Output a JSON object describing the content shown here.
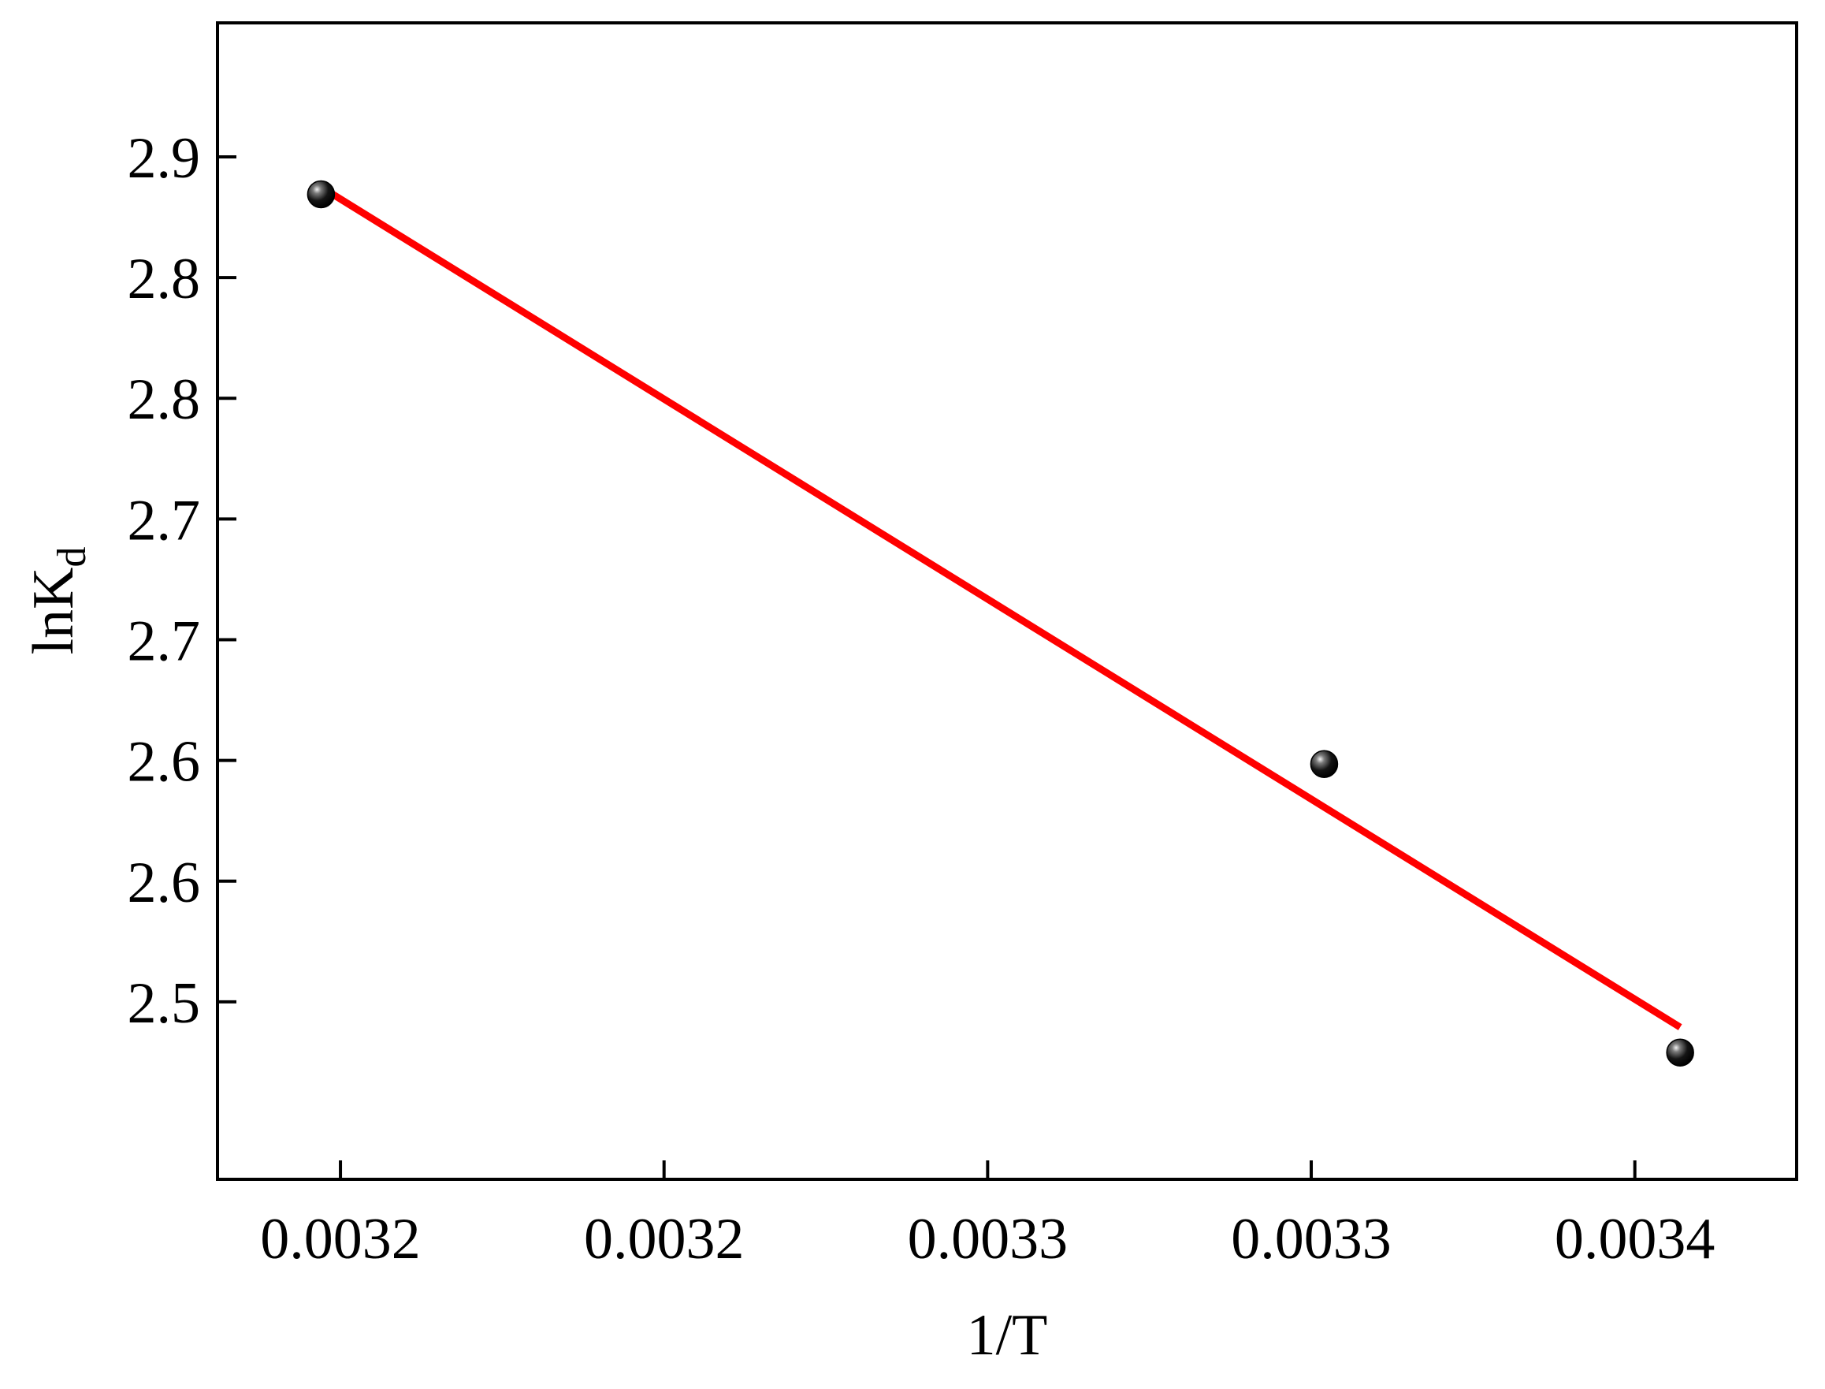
{
  "chart_data": {
    "type": "scatter",
    "xlabel": "1/T",
    "ylabel_main": "lnK",
    "ylabel_sub": "d",
    "xlim": [
      0.003166,
      0.00341
    ],
    "ylim": [
      2.4265,
      2.9055
    ],
    "x_ticks": [
      {
        "value": 0.003185,
        "label": "0.0032"
      },
      {
        "value": 0.003235,
        "label": "0.0032"
      },
      {
        "value": 0.003285,
        "label": "0.0033"
      },
      {
        "value": 0.003335,
        "label": "0.0033"
      },
      {
        "value": 0.003385,
        "label": "0.0034"
      }
    ],
    "y_ticks": [
      {
        "value": 2.5,
        "label": "2.5"
      },
      {
        "value": 2.55,
        "label": "2.6"
      },
      {
        "value": 2.6,
        "label": "2.6"
      },
      {
        "value": 2.65,
        "label": "2.7"
      },
      {
        "value": 2.7,
        "label": "2.7"
      },
      {
        "value": 2.75,
        "label": "2.8"
      },
      {
        "value": 2.8,
        "label": "2.8"
      },
      {
        "value": 2.85,
        "label": "2.9"
      }
    ],
    "series": [
      {
        "kind": "points",
        "color": "#000000",
        "x": [
          0.003182,
          0.003337,
          0.003392
        ],
        "y": [
          2.8345,
          2.5985,
          2.479
        ]
      },
      {
        "kind": "fit-line",
        "color": "#ff0000",
        "x": [
          0.003182,
          0.003392
        ],
        "y": [
          2.8375,
          2.4895
        ]
      }
    ],
    "grid": false,
    "legend": "none"
  }
}
